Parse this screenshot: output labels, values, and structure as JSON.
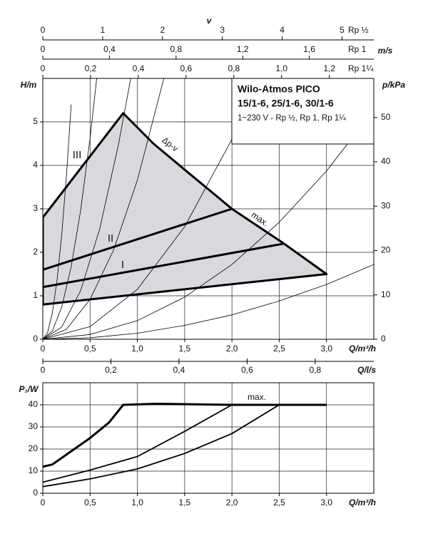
{
  "chart_data": [
    {
      "type": "line",
      "y_label": "H/m",
      "y2_label": "p/kPa",
      "x_label": "Q/m³/h",
      "xlim": [
        0,
        3.5
      ],
      "xticks": [
        0,
        {
          "value": 0.5,
          "label": "0,5"
        },
        {
          "value": 1,
          "label": "1,0"
        },
        {
          "value": 1.5,
          "label": "1,5"
        },
        {
          "value": 2,
          "label": "2,0"
        },
        {
          "value": 2.5,
          "label": "2,5"
        },
        {
          "value": 3,
          "label": "3,0"
        }
      ],
      "ylim": [
        0,
        6
      ],
      "yticks": [
        0,
        1,
        2,
        3,
        4,
        5
      ],
      "y2lim": [
        0,
        58.8
      ],
      "y2ticks": [
        0,
        10,
        20,
        30,
        40,
        50
      ],
      "grid": true,
      "box": {
        "title": "Wilo-Atmos PICO",
        "subtitle": "15/1-6, 25/1-6, 30/1-6",
        "note": "1~230 V - Rp ½, Rp 1, Rp 1¼"
      },
      "annotations": [
        "III",
        "Δp-v",
        "II",
        "I",
        "max."
      ],
      "top_scales": {
        "v_label": "v",
        "unit": "m/s",
        "scales": [
          {
            "name": "Rp ½",
            "lim": [
              0,
              5.53
            ],
            "ticks": [
              0,
              1,
              2,
              3,
              4,
              5
            ]
          },
          {
            "name": "Rp 1",
            "lim": [
              0,
              1.987
            ],
            "ticks": [
              0,
              {
                "value": 0.4,
                "label": "0,4"
              },
              {
                "value": 0.8,
                "label": "0,8"
              },
              {
                "value": 1.2,
                "label": "1,2"
              },
              {
                "value": 1.6,
                "label": "1,6"
              }
            ]
          },
          {
            "name": "Rp 1¼",
            "lim": [
              0,
              1.386
            ],
            "ticks": [
              0,
              {
                "value": 0.2,
                "label": "0,2"
              },
              {
                "value": 0.4,
                "label": "0,4"
              },
              {
                "value": 0.6,
                "label": "0,6"
              },
              {
                "value": 0.8,
                "label": "0,8"
              },
              {
                "value": 1.0,
                "label": "1,0"
              },
              {
                "value": 1.2,
                "label": "1,2"
              }
            ]
          }
        ]
      },
      "x2_label": "Q/l/s",
      "x2lim": [
        0,
        0.972
      ],
      "x2ticks": [
        0,
        {
          "value": 0.2,
          "label": "0,2"
        },
        {
          "value": 0.4,
          "label": "0,4"
        },
        {
          "value": 0.6,
          "label": "0,6"
        },
        {
          "value": 0.8,
          "label": "0,8"
        }
      ],
      "series": [
        {
          "style": "area",
          "color": "#d9d9dd",
          "x": [
            0,
            0.85,
            1.17,
            1.5,
            1.75,
            2.0,
            2.55,
            3.0,
            0
          ],
          "values": [
            2.8,
            5.2,
            4.5,
            3.9,
            3.45,
            3.0,
            2.2,
            1.5,
            0.8
          ]
        },
        {
          "style": "thin",
          "color": "#000000",
          "x": [
            0,
            0.05,
            0.1,
            0.15,
            0.2,
            0.25,
            0.3
          ],
          "values": [
            0,
            0.15,
            0.6,
            1.35,
            2.4,
            3.75,
            5.4
          ]
        },
        {
          "style": "thin",
          "color": "#000000",
          "x": [
            0,
            0.1,
            0.2,
            0.3,
            0.4,
            0.5,
            0.57
          ],
          "values": [
            0,
            0.19,
            0.74,
            1.67,
            2.96,
            4.63,
            6.0
          ]
        },
        {
          "style": "thin",
          "color": "#000000",
          "x": [
            0,
            0.2,
            0.4,
            0.6,
            0.8,
            0.93
          ],
          "values": [
            0,
            0.28,
            1.12,
            2.52,
            4.48,
            6.0
          ]
        },
        {
          "style": "thin",
          "color": "#000000",
          "x": [
            0,
            0.25,
            0.5,
            0.75,
            1.0,
            1.28
          ],
          "values": [
            0,
            0.23,
            0.92,
            2.06,
            3.66,
            6.0
          ]
        },
        {
          "style": "thin",
          "color": "#000000",
          "x": [
            0,
            0.5,
            1.0,
            1.5,
            2.0,
            2.28
          ],
          "values": [
            0,
            0.29,
            1.15,
            2.59,
            4.6,
            5.98
          ]
        },
        {
          "style": "thin",
          "color": "#000000",
          "x": [
            0,
            0.5,
            1.0,
            1.5,
            2.0,
            2.5,
            3.0,
            3.5
          ],
          "values": [
            0,
            0.11,
            0.43,
            0.97,
            1.72,
            2.69,
            3.87,
            5.27
          ]
        },
        {
          "style": "thin",
          "color": "#000000",
          "x": [
            0,
            0.5,
            1.0,
            1.5,
            2.0,
            2.5,
            3.0,
            3.5
          ],
          "values": [
            0,
            0.035,
            0.14,
            0.32,
            0.56,
            0.88,
            1.26,
            1.72
          ]
        },
        {
          "style": "thick",
          "color": "#000000",
          "x": [
            0,
            2.0
          ],
          "values": [
            1.6,
            3.0
          ]
        },
        {
          "style": "thick",
          "color": "#000000",
          "x": [
            0,
            2.55
          ],
          "values": [
            1.2,
            2.2
          ]
        }
      ]
    },
    {
      "type": "line",
      "y_label": "P₁/W",
      "x_label": "Q/m³/h",
      "xlim": [
        0,
        3.5
      ],
      "xticks": [
        0,
        {
          "value": 0.5,
          "label": "0,5"
        },
        {
          "value": 1,
          "label": "1,0"
        },
        {
          "value": 1.5,
          "label": "1,5"
        },
        {
          "value": 2,
          "label": "2,0"
        },
        {
          "value": 2.5,
          "label": "2,5"
        },
        {
          "value": 3,
          "label": "3,0"
        }
      ],
      "ylim": [
        0,
        50
      ],
      "yticks": [
        0,
        10,
        20,
        30,
        40
      ],
      "grid": true,
      "annotations": [
        "max."
      ],
      "series": [
        {
          "style": "thick",
          "color": "#000000",
          "x": [
            0,
            0.1,
            0.3,
            0.5,
            0.7,
            0.85,
            1.2,
            2.0,
            3.0
          ],
          "values": [
            12,
            13,
            19,
            25,
            32,
            40,
            40.5,
            40,
            40
          ]
        },
        {
          "style": "medium",
          "color": "#000000",
          "x": [
            0,
            0.5,
            1.0,
            1.5,
            2.0
          ],
          "values": [
            5,
            10.5,
            16.6,
            28,
            40
          ]
        },
        {
          "style": "medium",
          "color": "#000000",
          "x": [
            0,
            0.5,
            1.0,
            1.5,
            2.0,
            2.5
          ],
          "values": [
            3,
            6.5,
            11,
            18,
            27,
            40
          ]
        }
      ]
    }
  ]
}
